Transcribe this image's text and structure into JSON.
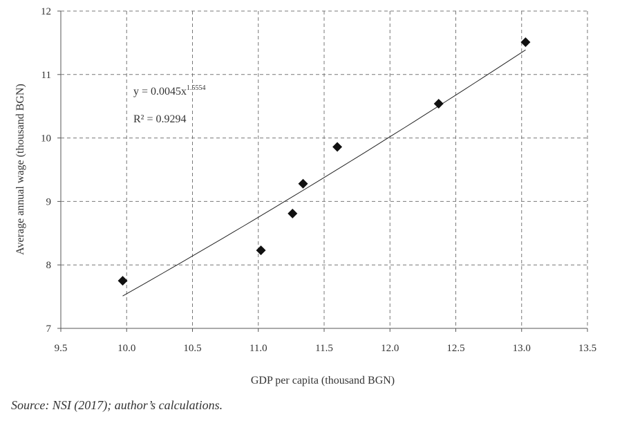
{
  "chart_data": {
    "type": "scatter",
    "title": "",
    "xlabel": "GDP per capita (thousand BGN)",
    "ylabel": "Average annual wage (thousand BGN)",
    "xlim": [
      9.5,
      13.5
    ],
    "ylim": [
      7,
      12
    ],
    "xticks": [
      "9.5",
      "10.0",
      "10.5",
      "11.0",
      "11.5",
      "12.0",
      "12.5",
      "13.0",
      "13.5"
    ],
    "yticks": [
      "7",
      "8",
      "9",
      "10",
      "11",
      "12"
    ],
    "grid": true,
    "points": [
      {
        "x": 9.97,
        "y": 7.75
      },
      {
        "x": 11.02,
        "y": 8.23
      },
      {
        "x": 11.26,
        "y": 8.81
      },
      {
        "x": 11.34,
        "y": 9.28
      },
      {
        "x": 11.6,
        "y": 9.86
      },
      {
        "x": 12.37,
        "y": 10.54
      },
      {
        "x": 13.03,
        "y": 11.51
      }
    ],
    "trendline": {
      "type": "power",
      "exponent": 1.5554,
      "x_range": [
        9.97,
        13.03
      ],
      "y_start": 7.51
    },
    "annotations": {
      "equation": "y = 0.0045x",
      "exponent_label": "1.5554",
      "r2": "R² = 0.9294"
    }
  },
  "source": "Source: NSI (2017); author’s calculations."
}
